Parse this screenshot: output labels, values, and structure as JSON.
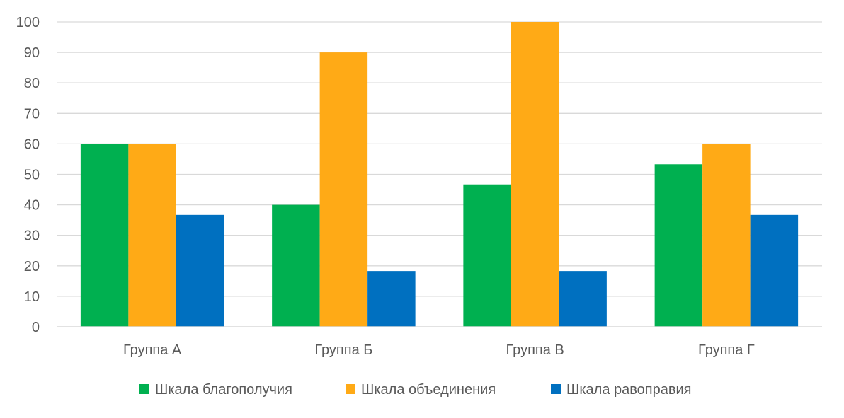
{
  "chart_data": {
    "type": "bar",
    "categories": [
      "Группа А",
      "Группа Б",
      "Группа В",
      "Группа Г"
    ],
    "series": [
      {
        "name": "Шкала благополучия",
        "color": "#00B050",
        "values": [
          60,
          40,
          46.7,
          53.3
        ]
      },
      {
        "name": "Шкала объединения",
        "color": "#FFAA16",
        "values": [
          60,
          90,
          100,
          60
        ]
      },
      {
        "name": "Шкала равоправия",
        "color": "#0070C0",
        "values": [
          36.7,
          18.3,
          18.3,
          36.7
        ]
      }
    ],
    "ylim": [
      0,
      100
    ],
    "yticks": [
      0,
      10,
      20,
      30,
      40,
      50,
      60,
      70,
      80,
      90,
      100
    ],
    "title": "",
    "xlabel": "",
    "ylabel": "",
    "grid": true,
    "legend_position": "bottom"
  }
}
